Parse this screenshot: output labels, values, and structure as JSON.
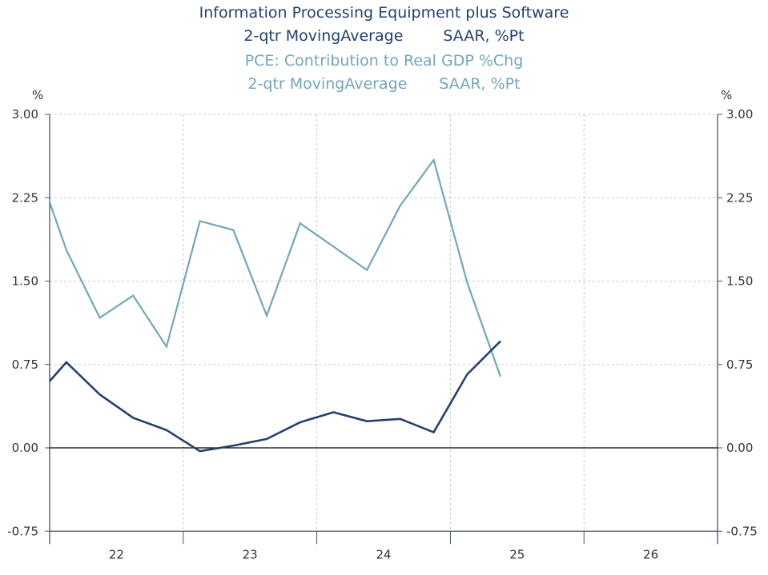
{
  "chart_data": {
    "type": "line",
    "titles": [
      {
        "line1": "Information Processing Equipment plus Software",
        "line2a": "2-qtr MovingAverage",
        "line2b": "SAAR, %Pt",
        "color": "#25406b"
      },
      {
        "line1": "PCE: Contribution to Real GDP %Chg",
        "line2a": "2-qtr MovingAverage",
        "line2b": "SAAR, %Pt",
        "color": "#73a6b8"
      }
    ],
    "ylabel_left": "%",
    "ylabel_right": "%",
    "ylim": [
      -0.75,
      3.0
    ],
    "yticks": [
      "3.00",
      "2.25",
      "1.50",
      "0.75",
      "0.00",
      "-0.75"
    ],
    "xlim": [
      2022.0,
      2027.0
    ],
    "xticks": [
      "22",
      "23",
      "24",
      "25",
      "26"
    ],
    "x": [
      2021.875,
      2022.125,
      2022.375,
      2022.625,
      2022.875,
      2023.125,
      2023.375,
      2023.625,
      2023.875,
      2024.125,
      2024.375,
      2024.625,
      2024.875,
      2025.125,
      2025.375
    ],
    "series": [
      {
        "name": "Information Processing Equipment plus Software",
        "color": "#25406b",
        "values": [
          0.43,
          0.77,
          0.48,
          0.27,
          0.16,
          -0.03,
          0.02,
          0.08,
          0.23,
          0.32,
          0.24,
          0.26,
          0.14,
          0.66,
          0.96
        ]
      },
      {
        "name": "PCE: Contribution to Real GDP %Chg",
        "color": "#73a6b8",
        "values": [
          2.64,
          1.78,
          1.17,
          1.37,
          0.91,
          2.04,
          1.96,
          1.19,
          2.02,
          1.81,
          1.6,
          2.18,
          2.59,
          1.49,
          0.64
        ]
      }
    ],
    "grid": true
  }
}
